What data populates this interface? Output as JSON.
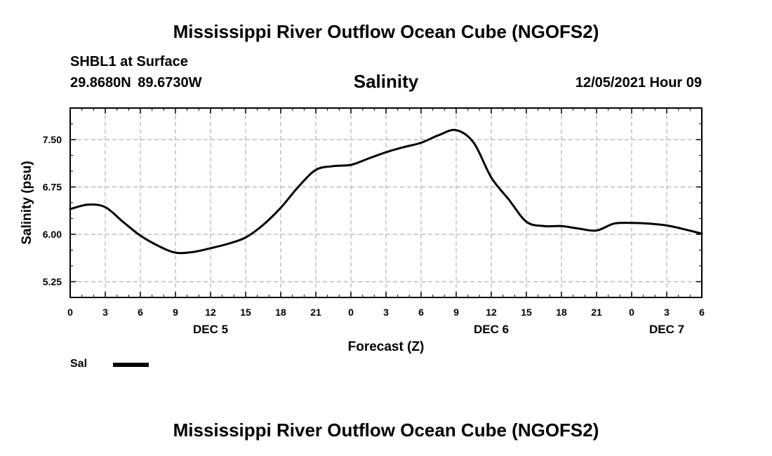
{
  "header": {
    "title": "Mississippi River Outflow Ocean Cube (NGOFS2)",
    "station": "SHBL1 at Surface",
    "coordinates": "29.8680N  89.6730W",
    "datetime": "12/05/2021 Hour 09"
  },
  "footer": {
    "title": "Mississippi River Outflow Ocean Cube (NGOFS2)"
  },
  "chart_data": {
    "type": "line",
    "title": "Salinity",
    "xlabel": "Forecast (Z)",
    "ylabel": "Salinity (psu)",
    "ylim": [
      5.0,
      8.0
    ],
    "xlim": [
      0,
      54
    ],
    "grid": true,
    "x_ticks": [
      0,
      3,
      6,
      9,
      12,
      15,
      18,
      21,
      24,
      27,
      30,
      33,
      36,
      39,
      42,
      45,
      48,
      51,
      54
    ],
    "x_tick_labels": [
      "0",
      "3",
      "6",
      "9",
      "12",
      "15",
      "18",
      "21",
      "0",
      "3",
      "6",
      "9",
      "12",
      "15",
      "18",
      "21",
      "0",
      "3",
      "6"
    ],
    "y_ticks": [
      5.25,
      6.0,
      6.75,
      7.5
    ],
    "y_tick_labels": [
      "5.25",
      "6.00",
      "6.75",
      "7.50"
    ],
    "date_labels": [
      {
        "x": 12,
        "label": "DEC 5"
      },
      {
        "x": 36,
        "label": "DEC 6"
      },
      {
        "x": 51,
        "label": "DEC 7"
      }
    ],
    "legend": [
      {
        "name": "Sal",
        "color": "#000000"
      }
    ],
    "series": [
      {
        "name": "Sal",
        "color": "#000000",
        "x": [
          0,
          1.5,
          3,
          4.5,
          6,
          7.5,
          9,
          10.5,
          12,
          13.5,
          15,
          16.5,
          18,
          19.5,
          21,
          22.5,
          24,
          25.5,
          27,
          28.5,
          30,
          31.5,
          33,
          34.5,
          36,
          37.5,
          39,
          40.5,
          42,
          43.5,
          45,
          46.5,
          48,
          49.5,
          51,
          52.5,
          54
        ],
        "values": [
          6.4,
          6.47,
          6.43,
          6.2,
          5.98,
          5.82,
          5.71,
          5.72,
          5.78,
          5.85,
          5.95,
          6.15,
          6.42,
          6.75,
          7.02,
          7.08,
          7.1,
          7.2,
          7.3,
          7.38,
          7.45,
          7.57,
          7.65,
          7.45,
          6.9,
          6.55,
          6.2,
          6.13,
          6.13,
          6.09,
          6.06,
          6.17,
          6.18,
          6.17,
          6.14,
          6.08,
          6.01
        ]
      }
    ]
  }
}
